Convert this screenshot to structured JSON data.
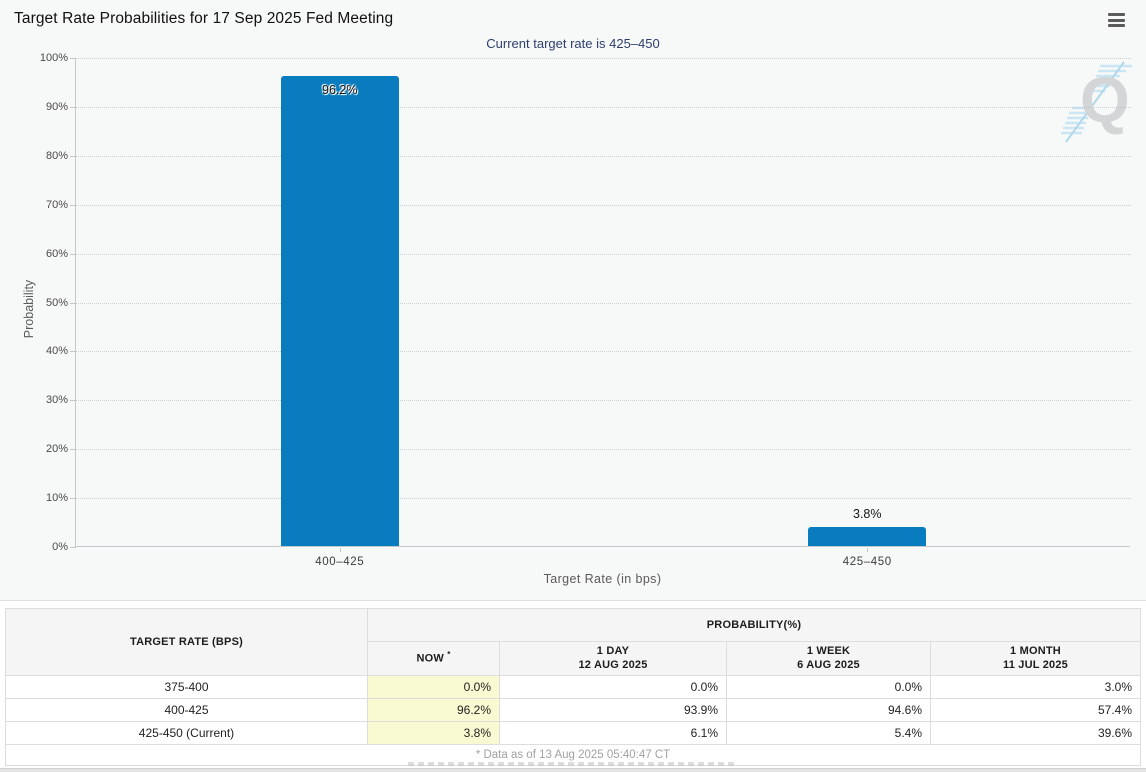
{
  "header": {
    "title": "Target Rate Probabilities for 17 Sep 2025 Fed Meeting",
    "menu_icon": "hamburger-menu"
  },
  "chart_data": {
    "type": "bar",
    "title": "Target Rate Probabilities for 17 Sep 2025 Fed Meeting",
    "subtitle": "Current target rate is 425–450",
    "categories": [
      "400–425",
      "425–450"
    ],
    "values": [
      96.2,
      3.8
    ],
    "value_labels": [
      "96.2%",
      "3.8%"
    ],
    "xlabel": "Target Rate (in bps)",
    "ylabel": "Probability",
    "ylim": [
      0,
      100
    ],
    "ytick_step": 10,
    "ytick_labels": [
      "0%",
      "10%",
      "20%",
      "30%",
      "40%",
      "50%",
      "60%",
      "70%",
      "80%",
      "90%",
      "100%"
    ],
    "legend": "none",
    "grid": "horizontal dotted",
    "bar_color": "#087cbe",
    "watermark_letter": "Q"
  },
  "table": {
    "col1_header": "TARGET RATE (BPS)",
    "group_header": "PROBABILITY(%)",
    "columns": [
      {
        "label": "NOW",
        "sub": "",
        "sup": "*"
      },
      {
        "label": "1 DAY",
        "sub": "12 AUG 2025",
        "sup": ""
      },
      {
        "label": "1 WEEK",
        "sub": "6 AUG 2025",
        "sup": ""
      },
      {
        "label": "1 MONTH",
        "sub": "11 JUL 2025",
        "sup": ""
      }
    ],
    "rows": [
      {
        "rate": "375-400",
        "values": [
          "0.0%",
          "0.0%",
          "0.0%",
          "3.0%"
        ]
      },
      {
        "rate": "400-425",
        "values": [
          "96.2%",
          "93.9%",
          "94.6%",
          "57.4%"
        ]
      },
      {
        "rate": "425-450 (Current)",
        "values": [
          "3.8%",
          "6.1%",
          "5.4%",
          "39.6%"
        ]
      }
    ],
    "footnote": "* Data as of 13 Aug 2025 05:40:47 CT"
  },
  "colors": {
    "bar": "#087cbe",
    "subtitle_text": "#2e3f6f",
    "now_column_highlight": "#fafad2",
    "chart_background": "#f7f8f8",
    "header_cell_background": "#f5f5f5"
  }
}
